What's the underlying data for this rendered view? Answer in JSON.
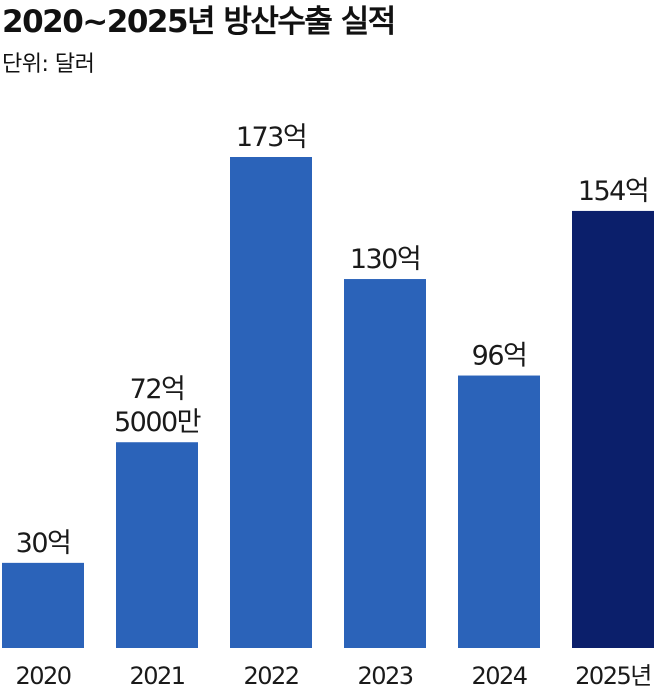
{
  "title": "2020~2025년 방산수출 실적",
  "unit_label": "단위: 달러",
  "colors": {
    "bar": "#2b63b9",
    "highlight_bar": "#0b1f6b",
    "text": "#1a1a1a"
  },
  "chart_data": {
    "type": "bar",
    "title": "2020~2025년 방산수출 실적",
    "xlabel": "",
    "ylabel": "",
    "categories": [
      "2020",
      "2021",
      "2022",
      "2023",
      "2024",
      "2025년"
    ],
    "values": [
      3000000000,
      7250000000,
      17300000000,
      13000000000,
      9600000000,
      15400000000
    ],
    "value_labels": [
      [
        "30억"
      ],
      [
        "72억",
        "5000만"
      ],
      [
        "173억"
      ],
      [
        "130억"
      ],
      [
        "96억"
      ],
      [
        "154억"
      ]
    ],
    "highlight_index": 5,
    "ylim": [
      0,
      17300000000
    ],
    "grid": false,
    "legend": "none"
  }
}
